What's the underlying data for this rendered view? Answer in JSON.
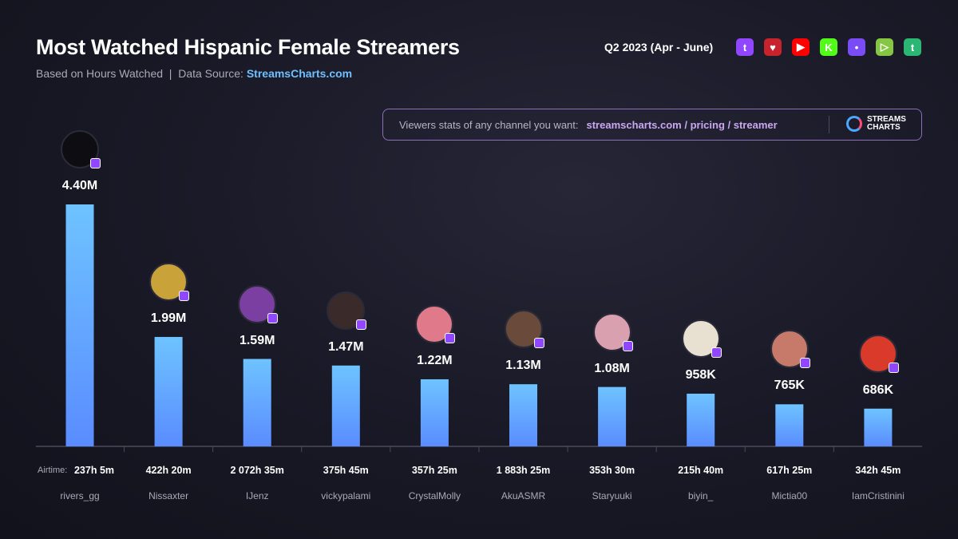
{
  "header": {
    "title": "Most Watched Hispanic Female Streamers",
    "subtitle": "Based on Hours Watched",
    "separator": "|",
    "source_label": "Data Source:",
    "source": "StreamsCharts.com",
    "period": "Q2 2023 (Apr - June)"
  },
  "platforms": [
    {
      "name": "twitch",
      "color": "#9146ff",
      "glyph": "t"
    },
    {
      "name": "youtube-gaming",
      "color": "#c8232c",
      "glyph": "♥"
    },
    {
      "name": "youtube",
      "color": "#ff0000",
      "glyph": "▶"
    },
    {
      "name": "kick",
      "color": "#53fc18",
      "glyph": "K"
    },
    {
      "name": "trovo",
      "color": "#7a4cf5",
      "glyph": "•"
    },
    {
      "name": "rumble",
      "color": "#85c742",
      "glyph": "▷"
    },
    {
      "name": "tiktok-live",
      "color": "#2bb673",
      "glyph": "t"
    }
  ],
  "promo": {
    "text": "Viewers stats of any channel you want:",
    "link": "streamscharts.com / pricing / streamer",
    "logo_line1": "STREAMS",
    "logo_line2": "CHARTS"
  },
  "chart_data": {
    "type": "bar",
    "title": "Most Watched Hispanic Female Streamers",
    "ylabel": "Hours Watched",
    "ylim": [
      0,
      4.4
    ],
    "unit": "M",
    "categories": [
      "rivers_gg",
      "Nissaxter",
      "IJenz",
      "vickypalami",
      "CrystalMolly",
      "AkuASMR",
      "Staryuuki",
      "biyin_",
      "Mictia00",
      "IamCristinini"
    ],
    "values": [
      4.4,
      1.99,
      1.59,
      1.47,
      1.22,
      1.13,
      1.08,
      0.958,
      0.765,
      0.686
    ],
    "value_labels": [
      "4.40M",
      "1.99M",
      "1.59M",
      "1.47M",
      "1.22M",
      "1.13M",
      "1.08M",
      "958K",
      "765K",
      "686K"
    ],
    "airtime_label": "Airtime:",
    "airtime": [
      "237h 5m",
      "422h 20m",
      "2 072h 35m",
      "375h 45m",
      "357h 25m",
      "1 883h 25m",
      "353h 30m",
      "215h 40m",
      "617h 25m",
      "342h 45m"
    ],
    "avatar_colors": [
      "#0d0d12",
      "#c9a23a",
      "#7a3fa0",
      "#3a2a2a",
      "#e07a8a",
      "#6a4a3a",
      "#d9a0b0",
      "#e8e0d0",
      "#c87a6a",
      "#d93a2a"
    ],
    "bar_color_top": "#6ec3ff",
    "bar_color_bottom": "#5a8cff"
  }
}
